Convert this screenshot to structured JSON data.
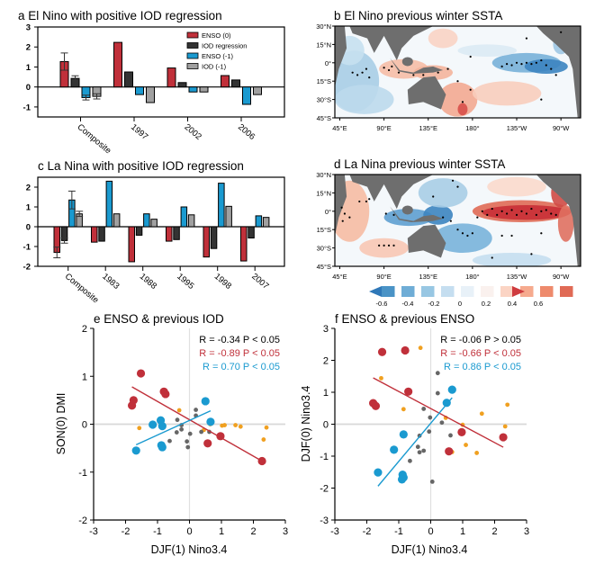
{
  "panels": {
    "a": {
      "title": "a El Nino with positive IOD regression",
      "yticks": [
        "3",
        "2",
        "1",
        "0",
        "-1"
      ],
      "categories": [
        "Composite",
        "1997",
        "2002",
        "2006"
      ]
    },
    "b": {
      "title": "b El Nino previous winter SSTA"
    },
    "c": {
      "title": "c La Nina with positive IOD regression",
      "yticks": [
        "2",
        "1",
        "0",
        "-1",
        "-2"
      ],
      "categories": [
        "Composite",
        "1983",
        "1988",
        "1995",
        "1998",
        "2007"
      ]
    },
    "d": {
      "title": "d La Nina previous winter SSTA"
    },
    "e": {
      "title": "e ENSO & previous IOD",
      "xlabel": "DJF(1) Nino3.4",
      "ylabel": "SON(0) DMI",
      "stats": [
        {
          "text": "R = -0.34  P < 0.05",
          "color": "#000000"
        },
        {
          "text": "R = -0.89  P < 0.05",
          "color": "#c0303a"
        },
        {
          "text": "R =  0.70  P < 0.05",
          "color": "#1a9ad0"
        }
      ]
    },
    "f": {
      "title": "f ENSO & previous ENSO",
      "xlabel": "DJF(1) Nino3.4",
      "ylabel": "DJF(0) Nino3.4",
      "stats": [
        {
          "text": "R = -0.06  P > 0.05",
          "color": "#000000"
        },
        {
          "text": "R = -0.66  P < 0.05",
          "color": "#c0303a"
        },
        {
          "text": "R =  0.86  P < 0.05",
          "color": "#1a9ad0"
        }
      ]
    }
  },
  "map_axes": {
    "lat_labels": [
      "30°N",
      "15°N",
      "0°",
      "15°S",
      "30°S",
      "45°S"
    ],
    "lon_labels": [
      "45°E",
      "90°E",
      "135°E",
      "180°",
      "135°W",
      "90°W"
    ]
  },
  "colorbar": {
    "tick_labels": [
      "-0.6",
      "-0.4",
      "-0.2",
      "0",
      "0.2",
      "0.4",
      "0.6"
    ],
    "colors": [
      "#2f78b8",
      "#4a93c6",
      "#6fadd6",
      "#98c7e3",
      "#c5def0",
      "#e8f1f8",
      "#faf1ee",
      "#fbd4c4",
      "#f6aa8e",
      "#ee8a6c",
      "#e06a55",
      "#cf3b3f"
    ]
  },
  "colors": {
    "enso0": "#c0303a",
    "iodreg": "#333333",
    "enso1": "#1a9ad0",
    "iod1": "#a0a0a0",
    "orange": "#f0a020",
    "gray_pt": "#666666",
    "land": "#6e6e6e"
  },
  "chart_data": [
    {
      "type": "bar",
      "title": "a El Nino with positive IOD regression",
      "categories": [
        "Composite",
        "1997",
        "2002",
        "2006"
      ],
      "ylim": [
        -1.5,
        3
      ],
      "legend_position": "top-right",
      "series": [
        {
          "name": "ENSO (0)",
          "color": "#c0303a",
          "values": [
            1.27,
            2.23,
            0.95,
            0.57
          ],
          "error": [
            0.43,
            null,
            null,
            null
          ]
        },
        {
          "name": "IOD regression",
          "color": "#333333",
          "values": [
            0.43,
            0.75,
            0.22,
            0.35
          ],
          "error": [
            0.13,
            null,
            null,
            null
          ]
        },
        {
          "name": "ENSO (-1)",
          "color": "#1a9ad0",
          "values": [
            -0.53,
            -0.38,
            -0.25,
            -0.87
          ],
          "error": [
            0.12,
            null,
            null,
            null
          ]
        },
        {
          "name": "IOD (-1)",
          "color": "#a0a0a0",
          "values": [
            -0.47,
            -0.78,
            -0.25,
            -0.38
          ],
          "error": [
            0.13,
            null,
            null,
            null
          ]
        }
      ]
    },
    {
      "type": "bar",
      "title": "c La Nina with positive IOD regression",
      "categories": [
        "Composite",
        "1983",
        "1988",
        "1995",
        "1998",
        "2007"
      ],
      "ylim": [
        -2,
        2.5
      ],
      "series": [
        {
          "name": "ENSO (0)",
          "color": "#c0303a",
          "values": [
            -1.3,
            -0.78,
            -1.77,
            -0.73,
            -1.53,
            -1.73
          ],
          "error": [
            0.27,
            null,
            null,
            null,
            null,
            null
          ]
        },
        {
          "name": "IOD regression",
          "color": "#333333",
          "values": [
            -0.7,
            -0.73,
            -0.43,
            -0.65,
            -1.1,
            -0.57
          ],
          "error": [
            0.13,
            null,
            null,
            null,
            null,
            null
          ]
        },
        {
          "name": "ENSO (-1)",
          "color": "#1a9ad0",
          "values": [
            1.35,
            2.3,
            0.65,
            1.0,
            2.2,
            0.55
          ],
          "error": [
            0.45,
            null,
            null,
            null,
            null,
            null
          ]
        },
        {
          "name": "IOD (-1)",
          "color": "#a0a0a0",
          "values": [
            0.65,
            0.65,
            0.38,
            0.6,
            1.03,
            0.47
          ],
          "error": [
            0.13,
            null,
            null,
            null,
            null,
            null
          ]
        }
      ]
    },
    {
      "type": "scatter",
      "title": "e ENSO & previous IOD",
      "xlabel": "DJF(1) Nino3.4",
      "ylabel": "SON(0) DMI",
      "xlim": [
        -3,
        3
      ],
      "ylim": [
        -2,
        2
      ],
      "xticks": [
        "-3",
        "-2",
        "-1",
        "0",
        "1",
        "2",
        "3"
      ],
      "yticks": [
        "2",
        "1",
        "0",
        "-1",
        "-2"
      ],
      "series": [
        {
          "name": "El Nino-positive IOD (red)",
          "color": "#c0303a",
          "size": "large",
          "points": [
            [
              -1.52,
              1.06
            ],
            [
              -1.75,
              0.5
            ],
            [
              -1.8,
              0.39
            ],
            [
              -0.8,
              0.68
            ],
            [
              -0.75,
              0.63
            ],
            [
              0.97,
              -0.25
            ],
            [
              0.57,
              -0.4
            ],
            [
              2.27,
              -0.77
            ]
          ],
          "fit": [
            [
              -1.8,
              0.78
            ],
            [
              2.27,
              -0.77
            ]
          ]
        },
        {
          "name": "La Nina-positive IOD (blue)",
          "color": "#1a9ad0",
          "size": "large",
          "points": [
            [
              -1.67,
              -0.55
            ],
            [
              -1.15,
              -0.01
            ],
            [
              -0.9,
              0.08
            ],
            [
              -0.85,
              -0.04
            ],
            [
              -0.88,
              -0.44
            ],
            [
              -0.85,
              -0.48
            ],
            [
              0.5,
              0.48
            ],
            [
              0.66,
              0.05
            ]
          ],
          "fit": [
            [
              -1.67,
              -0.43
            ],
            [
              0.66,
              0.28
            ]
          ]
        },
        {
          "name": "Other (orange)",
          "color": "#f0a020",
          "size": "small",
          "points": [
            [
              -1.57,
              -0.08
            ],
            [
              -0.83,
              -0.06
            ],
            [
              -0.32,
              0.29
            ],
            [
              0.45,
              -0.12
            ],
            [
              0.65,
              0.0
            ],
            [
              1.02,
              -0.03
            ],
            [
              1.1,
              -0.02
            ],
            [
              1.44,
              -0.02
            ],
            [
              1.6,
              -0.05
            ],
            [
              2.32,
              -0.32
            ],
            [
              2.41,
              -0.07
            ]
          ]
        },
        {
          "name": "Other (gray)",
          "color": "#666666",
          "size": "small",
          "points": [
            [
              -0.62,
              -0.35
            ],
            [
              -0.38,
              0.09
            ],
            [
              -0.4,
              -0.17
            ],
            [
              -0.25,
              -0.02
            ],
            [
              -0.25,
              -0.11
            ],
            [
              -0.08,
              -0.36
            ],
            [
              -0.05,
              -0.48
            ],
            [
              0.02,
              -0.2
            ],
            [
              0.2,
              0.18
            ],
            [
              0.2,
              0.3
            ],
            [
              0.37,
              -0.16
            ],
            [
              0.62,
              -0.16
            ]
          ]
        }
      ]
    },
    {
      "type": "scatter",
      "title": "f ENSO & previous ENSO",
      "xlabel": "DJF(1) Nino3.4",
      "ylabel": "DJF(0) Nino3.4",
      "xlim": [
        -3,
        3
      ],
      "ylim": [
        -3,
        3
      ],
      "xticks": [
        "-3",
        "-2",
        "-1",
        "0",
        "1",
        "2",
        "3"
      ],
      "yticks": [
        "3",
        "2",
        "1",
        "0",
        "-1",
        "-2",
        "-3"
      ],
      "series": [
        {
          "name": "El Nino-positive IOD (red)",
          "color": "#c0303a",
          "size": "large",
          "points": [
            [
              -1.52,
              2.26
            ],
            [
              -0.8,
              2.31
            ],
            [
              -0.7,
              1.02
            ],
            [
              -1.8,
              0.66
            ],
            [
              -1.72,
              0.57
            ],
            [
              0.97,
              -0.25
            ],
            [
              0.57,
              -0.85
            ],
            [
              2.27,
              -0.41
            ]
          ],
          "fit": [
            [
              -1.8,
              1.45
            ],
            [
              2.27,
              -0.72
            ]
          ]
        },
        {
          "name": "La Nina-positive IOD (blue)",
          "color": "#1a9ad0",
          "size": "large",
          "points": [
            [
              -1.65,
              -1.51
            ],
            [
              -1.15,
              -0.8
            ],
            [
              -0.85,
              -0.32
            ],
            [
              -0.88,
              -1.58
            ],
            [
              -0.85,
              -1.67
            ],
            [
              -0.9,
              -1.73
            ],
            [
              0.5,
              0.67
            ],
            [
              0.67,
              1.08
            ]
          ],
          "fit": [
            [
              -1.65,
              -1.94
            ],
            [
              0.67,
              0.83
            ]
          ]
        },
        {
          "name": "Other (orange)",
          "color": "#f0a020",
          "size": "small",
          "points": [
            [
              -0.32,
              2.39
            ],
            [
              -1.55,
              1.44
            ],
            [
              -0.85,
              0.47
            ],
            [
              0.47,
              0.2
            ],
            [
              1.0,
              -0.02
            ],
            [
              1.6,
              0.33
            ],
            [
              2.4,
              0.61
            ],
            [
              2.33,
              -0.07
            ],
            [
              1.1,
              -0.65
            ],
            [
              0.67,
              -0.87
            ],
            [
              1.44,
              -0.9
            ]
          ]
        },
        {
          "name": "Other (gray)",
          "color": "#666666",
          "size": "small",
          "points": [
            [
              0.22,
              1.6
            ],
            [
              0.22,
              0.97
            ],
            [
              -0.22,
              0.48
            ],
            [
              -0.02,
              0.21
            ],
            [
              0.35,
              0.05
            ],
            [
              -0.05,
              -0.23
            ],
            [
              -0.35,
              -0.36
            ],
            [
              0.62,
              -0.35
            ],
            [
              -0.4,
              -0.71
            ],
            [
              -0.35,
              -0.88
            ],
            [
              -0.22,
              -0.83
            ],
            [
              -0.65,
              -1.15
            ],
            [
              0.05,
              -1.8
            ]
          ]
        }
      ]
    }
  ]
}
